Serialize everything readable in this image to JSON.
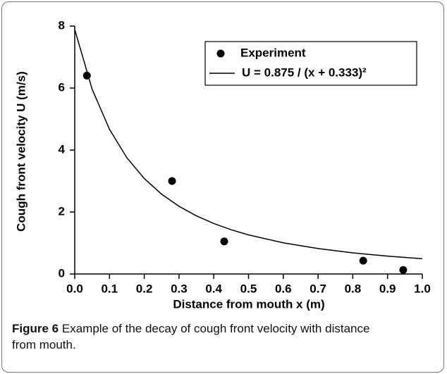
{
  "chart_data": {
    "type": "scatter",
    "xlabel": "Distance from mouth   x (m)",
    "ylabel": "Cough front velocity   U (m/s)",
    "xlim": [
      0,
      1.0
    ],
    "ylim": [
      0,
      8
    ],
    "xticks": [
      {
        "value": 0,
        "label": "0.0"
      },
      0.1,
      0.2,
      0.3,
      0.4,
      0.5,
      0.6,
      0.7,
      0.8,
      0.9,
      {
        "value": 1.0,
        "label": "1.0"
      }
    ],
    "yticks": [
      0,
      2,
      4,
      6,
      8
    ],
    "legend": "upper right",
    "series": [
      {
        "name": "Experiment",
        "type": "scatter",
        "color": "#000000",
        "x": [
          0.035,
          0.28,
          0.43,
          0.83,
          0.945
        ],
        "values": [
          6.4,
          3.0,
          1.05,
          0.43,
          0.13
        ]
      },
      {
        "name": "U = 0.875 / (x + 0.333)²",
        "type": "line",
        "color": "#000000",
        "x": [
          0,
          0.05,
          0.1,
          0.15,
          0.2,
          0.25,
          0.3,
          0.35,
          0.4,
          0.45,
          0.5,
          0.6,
          0.7,
          0.8,
          0.9,
          1.0
        ],
        "values": [
          7.891,
          5.965,
          4.667,
          3.751,
          3.08,
          2.574,
          2.184,
          1.876,
          1.629,
          1.427,
          1.261,
          1.005,
          0.82,
          0.682,
          0.576,
          0.492
        ]
      }
    ]
  },
  "caption": {
    "label": "Figure 6",
    "text": "Example of the decay of cough front velocity with distance from mouth."
  }
}
